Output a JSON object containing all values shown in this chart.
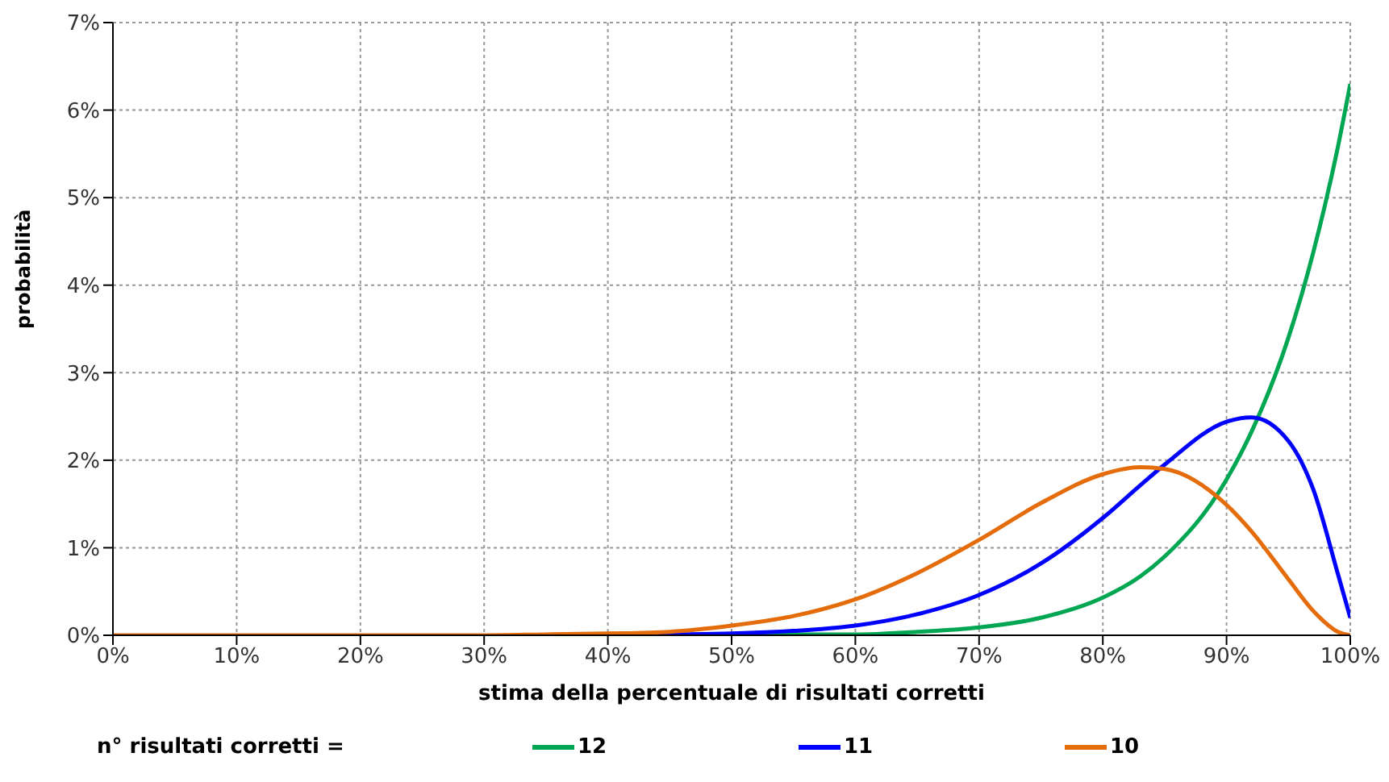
{
  "chart_data": {
    "type": "line",
    "xlabel": "stima della percentuale di risultati corretti",
    "ylabel": "probabilità",
    "legend_title": "n° risultati corretti =",
    "x": [
      0,
      10,
      20,
      30,
      35,
      40,
      45,
      50,
      55,
      60,
      65,
      70,
      75,
      80,
      83,
      85,
      90,
      92,
      95,
      97,
      99,
      100
    ],
    "series": [
      {
        "name": "12",
        "color": "#00a651",
        "values": [
          null,
          null,
          null,
          null,
          null,
          null,
          null,
          0,
          0.01,
          0.01,
          0.04,
          0.09,
          0.2,
          0.43,
          0.67,
          0.9,
          1.78,
          2.32,
          3.4,
          4.37,
          5.58,
          6.3
        ]
      },
      {
        "name": "11",
        "color": "#0000ff",
        "values": [
          null,
          null,
          null,
          null,
          null,
          0,
          0.01,
          0.02,
          0.05,
          0.11,
          0.24,
          0.46,
          0.82,
          1.34,
          1.71,
          1.95,
          2.44,
          2.49,
          2.22,
          1.67,
          0.7,
          0.2
        ]
      },
      {
        "name": "10",
        "color": "#e46c0a",
        "values": [
          0,
          0,
          0,
          0,
          0.01,
          0.02,
          0.04,
          0.11,
          0.22,
          0.41,
          0.71,
          1.09,
          1.51,
          1.84,
          1.92,
          1.9,
          1.49,
          1.19,
          0.64,
          0.28,
          0.04,
          0
        ]
      }
    ],
    "xlim": [
      0,
      100
    ],
    "xticks": [
      {
        "value": 0,
        "label": "0%"
      },
      {
        "value": 10,
        "label": "10%"
      },
      {
        "value": 20,
        "label": "20%"
      },
      {
        "value": 30,
        "label": "30%"
      },
      {
        "value": 40,
        "label": "40%"
      },
      {
        "value": 50,
        "label": "50%"
      },
      {
        "value": 60,
        "label": "60%"
      },
      {
        "value": 70,
        "label": "70%"
      },
      {
        "value": 80,
        "label": "80%"
      },
      {
        "value": 90,
        "label": "90%"
      },
      {
        "value": 100,
        "label": "100%"
      }
    ],
    "ylim": [
      0,
      7
    ],
    "yticks": [
      {
        "value": 0,
        "label": "0%"
      },
      {
        "value": 1,
        "label": "1%"
      },
      {
        "value": 2,
        "label": "2%"
      },
      {
        "value": 3,
        "label": "3%"
      },
      {
        "value": 4,
        "label": "4%"
      },
      {
        "value": 5,
        "label": "5%"
      },
      {
        "value": 6,
        "label": "6%"
      },
      {
        "value": 7,
        "label": "7%"
      }
    ],
    "grid": true,
    "legend": "bottom",
    "marker": "none",
    "line_style": "solid"
  }
}
